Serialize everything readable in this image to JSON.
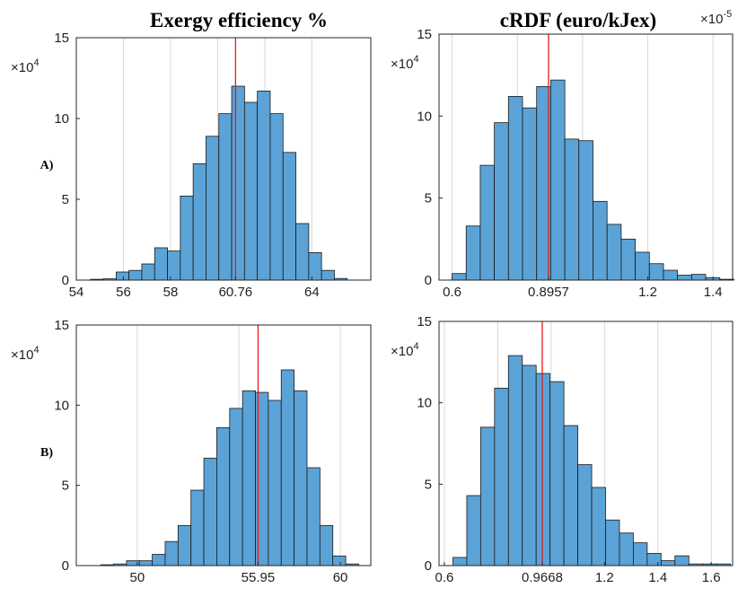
{
  "columns": [
    {
      "title": "Exergy efficiency %"
    },
    {
      "title": "cRDF (euro/kJex)",
      "exponent_note": "×10",
      "exponent_sup": "-5"
    }
  ],
  "rows": [
    {
      "label": "A)"
    },
    {
      "label": "B)"
    }
  ],
  "y_multiplier": {
    "base": "×10",
    "sup": "4"
  },
  "colors": {
    "bar_fill": "#5ba3d6",
    "bar_stroke": "#1a1a1a",
    "marker": "#e41a1c",
    "grid": "#d9d9d9",
    "axes": "#262626"
  },
  "chart_data": [
    {
      "type": "bar",
      "panel": "A) Exergy efficiency %",
      "marker_value": 60.76,
      "xlim": [
        54,
        66.5
      ],
      "xticks": [
        54,
        56,
        58,
        60.76,
        64
      ],
      "xtick_labels": [
        "54",
        "56",
        "58",
        "60.76",
        "64"
      ],
      "xgrid": [
        56,
        58,
        60,
        62,
        64
      ],
      "ylim": [
        0,
        15
      ],
      "yticks": [
        0,
        5,
        10,
        15
      ],
      "bin_width": 0.545,
      "bin_start": 54.6,
      "values": [
        0.05,
        0.08,
        0.5,
        0.6,
        1.0,
        2.0,
        1.8,
        5.2,
        7.2,
        8.9,
        10.3,
        12.0,
        11.0,
        11.7,
        10.3,
        7.9,
        3.5,
        1.7,
        0.6,
        0.1
      ],
      "title": "",
      "xlabel": "",
      "ylabel": ""
    },
    {
      "type": "bar",
      "panel": "A) cRDF (euro/kJex)",
      "marker_value": 0.8957,
      "xlim": [
        0.56,
        1.46
      ],
      "xticks": [
        0.6,
        0.8957,
        1.2,
        1.4
      ],
      "xtick_labels": [
        "0.6",
        "0.8957",
        "1.2",
        "1.4"
      ],
      "xgrid": [
        0.6,
        0.8,
        1.0,
        1.2,
        1.4
      ],
      "ylim": [
        0,
        15
      ],
      "yticks": [
        0,
        5,
        10,
        15
      ],
      "bin_width": 0.0432,
      "bin_start": 0.6,
      "values": [
        0.4,
        3.3,
        7.0,
        9.6,
        11.2,
        10.5,
        11.8,
        12.2,
        8.6,
        8.5,
        4.8,
        3.4,
        2.5,
        1.7,
        1.0,
        0.6,
        0.3,
        0.35,
        0.15,
        0.05
      ],
      "title": "",
      "xlabel": "",
      "ylabel": ""
    },
    {
      "type": "bar",
      "panel": "B) Exergy efficiency %",
      "marker_value": 55.95,
      "xlim": [
        47,
        61.5
      ],
      "xticks": [
        50,
        55.95,
        60
      ],
      "xtick_labels": [
        "50",
        "55.95",
        "60"
      ],
      "xgrid": [
        50,
        55,
        60
      ],
      "ylim": [
        0,
        15
      ],
      "yticks": [
        0,
        5,
        10,
        15
      ],
      "bin_width": 0.635,
      "bin_start": 48.2,
      "values": [
        0.05,
        0.1,
        0.3,
        0.3,
        0.7,
        1.5,
        2.5,
        4.7,
        6.7,
        8.6,
        9.8,
        10.9,
        10.8,
        10.3,
        12.2,
        10.9,
        6.1,
        2.5,
        0.6,
        0.1
      ],
      "title": "",
      "xlabel": "",
      "ylabel": ""
    },
    {
      "type": "bar",
      "panel": "B) cRDF (euro/kJex)",
      "marker_value": 0.9668,
      "xlim": [
        0.58,
        1.68
      ],
      "xticks": [
        0.6,
        0.9668,
        1.2,
        1.4,
        1.6
      ],
      "xtick_labels": [
        "0.6",
        "0.9668",
        "1.2",
        "1.4",
        "1.6"
      ],
      "xgrid": [
        0.6,
        0.8,
        1.0,
        1.2,
        1.4,
        1.6
      ],
      "ylim": [
        0,
        15
      ],
      "yticks": [
        0,
        5,
        10,
        15
      ],
      "bin_width": 0.052,
      "bin_start": 0.632,
      "values": [
        0.5,
        4.3,
        8.5,
        10.9,
        12.9,
        12.3,
        11.8,
        11.3,
        8.6,
        6.2,
        4.8,
        2.8,
        2.0,
        1.4,
        0.75,
        0.3,
        0.6,
        0.1,
        0.1,
        0.1
      ],
      "title": "",
      "xlabel": "",
      "ylabel": ""
    }
  ]
}
